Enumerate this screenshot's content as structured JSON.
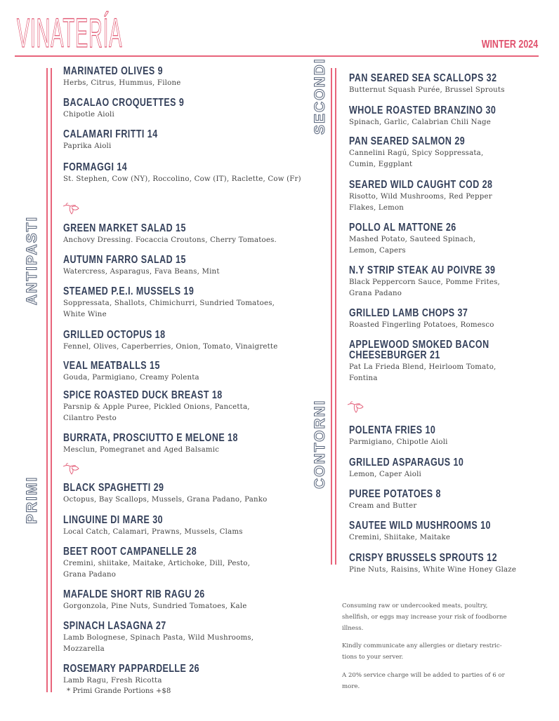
{
  "header": {
    "title": "VINATERÍA",
    "season": "WINTER 2024"
  },
  "sections": {
    "antipasti": "ANTIPASTI",
    "primi": "PRIMI",
    "secondi": "SECONDI",
    "contorni": "CONTORNI"
  },
  "left_items": [
    {
      "title": "MARINATED OLIVES 9",
      "desc": "Herbs, Citrus, Hummus, Filone"
    },
    {
      "title": "BACALAO CROQUETTES 9",
      "desc": "Chipotle Aioli"
    },
    {
      "title": "CALAMARI FRITTI 14",
      "desc": "Paprika Aioli"
    },
    {
      "title": "FORMAGGI 14",
      "desc": "St. Stephen, Cow (NY), Roccolino, Cow (IT), Raclette, Cow (Fr)"
    },
    {
      "title": "GREEN MARKET SALAD 15",
      "desc": "Anchovy Dressing. Focaccia Croutons, Cherry Tomatoes."
    },
    {
      "title": "AUTUMN FARRO SALAD 15",
      "desc": "Watercress, Asparagus, Fava Beans, Mint"
    },
    {
      "title": "STEAMED P.E.I. MUSSELS 19",
      "desc": "Soppressata, Shallots, Chimichurri, Sundried Tomatoes,\nWhite Wine"
    },
    {
      "title": "GRILLED OCTOPUS 18",
      "desc": "Fennel, Olives, Caperberries, Onion, Tomato, Vinaigrette"
    },
    {
      "title": "VEAL MEATBALLS 15",
      "desc": "Gouda, Parmigiano, Creamy Polenta"
    },
    {
      "title": "SPICE ROASTED DUCK BREAST 18",
      "desc": "Parsnip & Apple Puree, Pickled Onions, Pancetta,\nCilantro Pesto"
    },
    {
      "title": "BURRATA, PROSCIUTTO E MELONE 18",
      "desc": "Mesclun, Pomegranet and Aged Balsamic"
    },
    {
      "title": "BLACK SPAGHETTI 29",
      "desc": "Octopus, Bay Scallops, Mussels, Grana Padano, Panko"
    },
    {
      "title": "LINGUINE DI MARE 30",
      "desc": "Local Catch, Calamari, Prawns, Mussels, Clams"
    },
    {
      "title": "BEET ROOT CAMPANELLE 28",
      "desc": "Cremini, shiitake, Maitake, Artichoke, Dill, Pesto,\nGrana Padano"
    },
    {
      "title": "MAFALDE SHORT RIB RAGU 26",
      "desc": "Gorgonzola, Pine Nuts, Sundried Tomatoes, Kale"
    },
    {
      "title": "SPINACH LASAGNA 27",
      "desc": "Lamb Bolognese, Spinach Pasta, Wild Mushrooms,\nMozzarella"
    },
    {
      "title": "ROSEMARY PAPPARDELLE 26",
      "desc": "Lamb Ragu, Fresh Ricotta"
    }
  ],
  "primi_note": "* Primi Grande Portions +$8",
  "right_items": [
    {
      "title": "PAN SEARED SEA SCALLOPS 32",
      "desc": "Butternut Squash Purée, Brussel Sprouts"
    },
    {
      "title": "WHOLE ROASTED BRANZINO 30",
      "desc": "Spinach, Garlic, Calabrian Chili Nage"
    },
    {
      "title": "PAN SEARED SALMON 29",
      "desc": "Cannelini Ragú, Spicy Soppressata,\nCumin, Eggplant"
    },
    {
      "title": "SEARED WILD CAUGHT COD 28",
      "desc": "Risotto, Wild Mushrooms, Red Pepper\nFlakes, Lemon"
    },
    {
      "title": "POLLO AL MATTONE 26",
      "desc": "Mashed Potato, Sauteed Spinach,\nLemon, Capers"
    },
    {
      "title": "N.Y STRIP STEAK AU POIVRE 39",
      "desc": "Black Peppercorn Sauce, Pomme Frites,\nGrana Padano"
    },
    {
      "title": "GRILLED LAMB CHOPS 37",
      "desc": "Roasted Fingerling Potatoes, Romesco"
    },
    {
      "title": "APPLEWOOD SMOKED BACON\nCHEESEBURGER 21",
      "desc": "Pat La Frieda Blend, Heirloom Tomato,\nFontina"
    },
    {
      "title": "POLENTA FRIES 10",
      "desc": "Parmigiano, Chipotle Aioli"
    },
    {
      "title": "GRILLED ASPARAGUS 10",
      "desc": "Lemon, Caper Aioli"
    },
    {
      "title": "PUREE POTATOES 8",
      "desc": "Cream and Butter"
    },
    {
      "title": "SAUTEE WILD MUSHROOMS 10",
      "desc": "Cremini, Shiitake, Maitake"
    },
    {
      "title": "CRISPY BRUSSELS SPROUTS 12",
      "desc": "Pine Nuts, Raisins, White Wine Honey Glaze"
    }
  ],
  "footnotes": [
    "Consuming raw or undercooked meats, poultry,\nshellfish, or eggs may increase your risk of foodborne\nillness.",
    "Kindly communicate any allergies or dietary restric-\ntions to your server.",
    "A 20% service charge will be added to parties of 6 or\nmore."
  ],
  "colors": {
    "accent": "#e25873",
    "heading": "#34405a",
    "section": "#56637a"
  },
  "icons": {
    "divider": "floral-sprig-icon"
  }
}
